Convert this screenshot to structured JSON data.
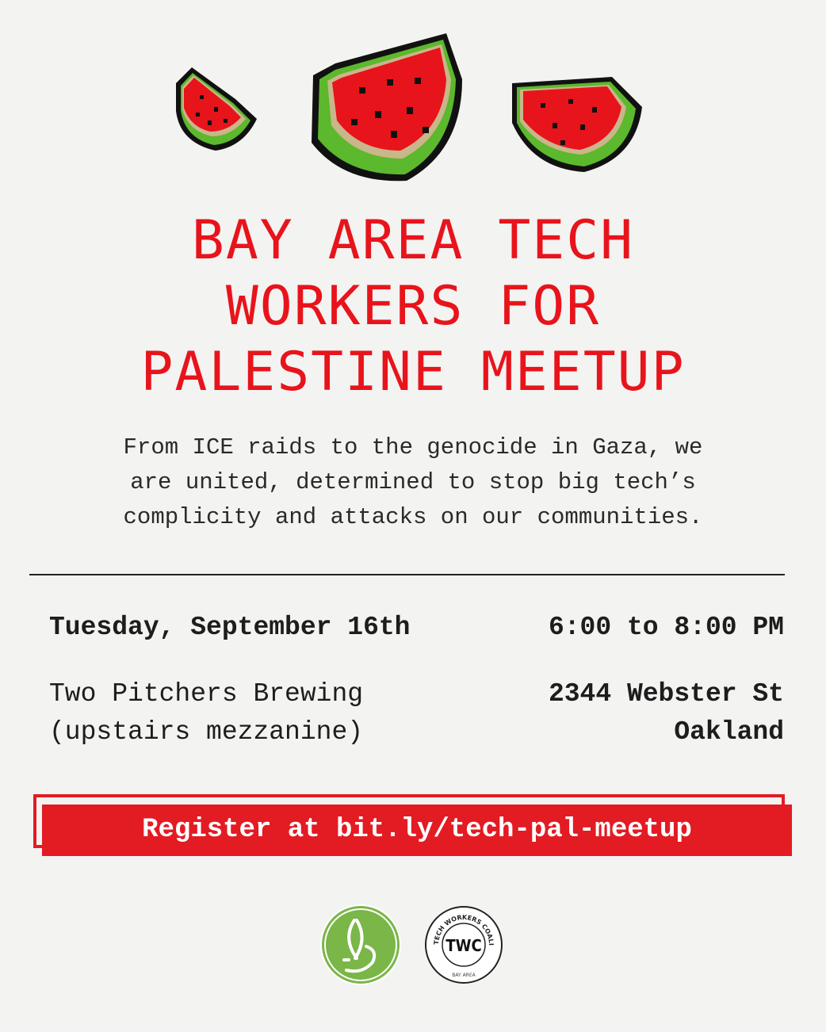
{
  "title_lines": [
    "BAY AREA TECH",
    "WORKERS FOR",
    "PALESTINE MEETUP"
  ],
  "description_lines": [
    "From ICE raids to the genocide in Gaza, we",
    "are united, determined to stop big tech’s",
    "complicity and attacks on our communities."
  ],
  "event": {
    "date": "Tuesday, September 16th",
    "time": "6:00 to 8:00 PM",
    "venue": "Two Pitchers Brewing",
    "venue_note": "(upstairs mezzanine)",
    "street": "2344 Webster St",
    "city": "Oakland"
  },
  "register_label": "Register at bit.ly/tech-pal-meetup",
  "logos": {
    "twc_ring_text": "TECH WORKERS COALITION",
    "twc_center": "TWC",
    "twc_bottom": "BAY AREA"
  },
  "colors": {
    "accent_red": "#e8141b",
    "logo_green": "#7ab648"
  }
}
